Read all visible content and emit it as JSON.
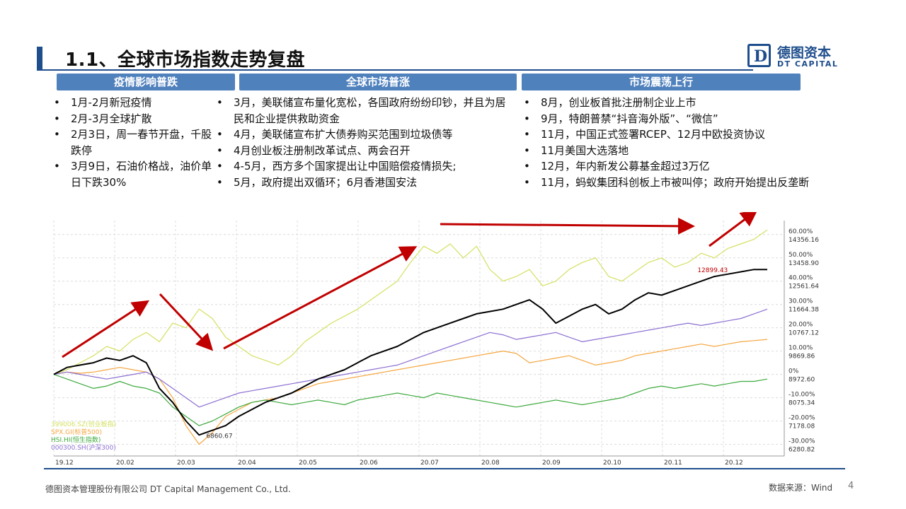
{
  "header": {
    "title": "1.1、全球市场指数走势复盘"
  },
  "logo": {
    "letter": "D",
    "cn": "德图资本",
    "en": "DT CAPITAL"
  },
  "phases": [
    {
      "label": "疫情影响普跌",
      "items": [
        "1月-2月新冠疫情",
        "2月-3月全球扩散",
        "2月3日，周一春节开盘，千股跌停",
        "3月9日，石油价格战，油价单日下跌30%"
      ]
    },
    {
      "label": "全球市场普涨",
      "items": [
        "3月，美联储宣布量化宽松，各国政府纷纷印钞，并且为居民和企业提供救助资金",
        "4月，美联储宣布扩大债券购买范围到垃圾债等",
        "4月创业板注册制改革试点、两会召开",
        "4-5月，西方多个国家提出让中国赔偿疫情损失;",
        "5月，政府提出双循环；6月香港国安法"
      ]
    },
    {
      "label": "市场震荡上行",
      "items": [
        "8月，创业板首批注册制企业上市",
        "9月，特朗普禁“抖音海外版”、“微信”",
        "11月，中国正式签署RCEP、12月中欧投资协议",
        "11月美国大选落地",
        "12月，年内新发公募基金超过3万亿",
        "11月，蚂蚁集团科创板上市被叫停；政府开始提出反垄断"
      ]
    }
  ],
  "chart_data": {
    "type": "line",
    "x_tick_labels": [
      "19.12",
      "20.02",
      "20.03",
      "20.04",
      "20.05",
      "20.06",
      "20.07",
      "20.08",
      "20.09",
      "20.10",
      "20.11",
      "20.12"
    ],
    "y_pct_ticks": [
      "60.00%",
      "50.00%",
      "40.00%",
      "30.00%",
      "20.00%",
      "10.00%",
      "0%",
      "-10.00%",
      "-20.00%",
      "-30.00%"
    ],
    "y_pct_values": [
      60,
      50,
      40,
      30,
      20,
      10,
      0,
      -10,
      -20,
      -30
    ],
    "y_level_ticks": [
      "14356.16",
      "13458.90",
      "12561.64",
      "11664.38",
      "10767.12",
      "9869.86",
      "8972.60",
      "8075.34",
      "7178.08",
      "6280.82"
    ],
    "y_level_values": [
      14356.16,
      13458.9,
      12561.64,
      11664.38,
      10767.12,
      9869.86,
      8972.6,
      8075.34,
      7178.08,
      6280.82
    ],
    "ylim_pct": [
      -35,
      66
    ],
    "annotations": {
      "low": "6860.67",
      "high": "12899.43"
    },
    "colors": {
      "gem": "#d4e060",
      "spx": "#f5a640",
      "hsi": "#3eaa3e",
      "csi": "#8c6fd1",
      "main": "#000000",
      "arrow": "#c00000"
    },
    "series": [
      {
        "name": "399006.SZ(创业板指)",
        "color": "#d4e060",
        "values": [
          0,
          2,
          5,
          8,
          12,
          10,
          15,
          18,
          14,
          22,
          20,
          28,
          24,
          16,
          12,
          8,
          6,
          4,
          8,
          14,
          18,
          22,
          25,
          28,
          32,
          36,
          40,
          48,
          55,
          52,
          56,
          50,
          55,
          45,
          40,
          42,
          45,
          38,
          40,
          45,
          48,
          50,
          42,
          40,
          44,
          48,
          50,
          46,
          48,
          52,
          50,
          54,
          56,
          58,
          62
        ]
      },
      {
        "name": "SPX.GI(标普500)",
        "color": "#f5a640",
        "values": [
          0,
          1,
          0.5,
          1,
          2,
          3,
          2,
          1,
          -2,
          -10,
          -22,
          -30,
          -25,
          -18,
          -15,
          -12,
          -11,
          -10,
          -8,
          -6,
          -4,
          -3,
          -2,
          -1,
          0,
          1,
          2,
          3,
          4,
          5,
          6,
          7,
          8,
          9,
          10,
          9,
          5,
          6,
          7,
          8,
          6,
          4,
          5,
          6,
          8,
          9,
          10,
          11,
          12,
          13,
          12,
          13,
          14,
          14.5,
          15
        ]
      },
      {
        "name": "HSI.HI(恒生指数)",
        "color": "#3eaa3e",
        "values": [
          0,
          -2,
          -4,
          -6,
          -5,
          -3,
          -5,
          -6,
          -8,
          -14,
          -18,
          -22,
          -20,
          -17,
          -14,
          -12,
          -11,
          -12,
          -13,
          -12,
          -11,
          -12,
          -13,
          -11,
          -10,
          -9,
          -8,
          -9,
          -10,
          -8,
          -9,
          -10,
          -11,
          -12,
          -13,
          -14,
          -13,
          -12,
          -11,
          -12,
          -13,
          -12,
          -11,
          -10,
          -8,
          -6,
          -5,
          -6,
          -5,
          -4,
          -5,
          -4,
          -3,
          -3,
          -2
        ]
      },
      {
        "name": "000300.SH(沪深300)",
        "color": "#8c6fd1",
        "values": [
          0,
          1,
          0,
          -1,
          -2,
          -1,
          0,
          1,
          -2,
          -6,
          -10,
          -14,
          -12,
          -10,
          -8,
          -7,
          -6,
          -5,
          -4,
          -3,
          -2,
          -1,
          0,
          1,
          2,
          3,
          4,
          6,
          8,
          10,
          12,
          14,
          16,
          18,
          17,
          15,
          16,
          17,
          18,
          16,
          14,
          15,
          16,
          17,
          18,
          19,
          20,
          21,
          22,
          21,
          22,
          23,
          24,
          26,
          28
        ]
      },
      {
        "name": "",
        "color": "#000000",
        "values": [
          0,
          3,
          4,
          5,
          7,
          6,
          8,
          5,
          -6,
          -12,
          -20,
          -26,
          -24,
          -22,
          -18,
          -15,
          -12,
          -10,
          -8,
          -5,
          -2,
          0,
          2,
          5,
          8,
          10,
          12,
          15,
          18,
          20,
          22,
          24,
          26,
          27,
          28,
          30,
          32,
          28,
          22,
          25,
          28,
          30,
          26,
          28,
          32,
          35,
          34,
          36,
          38,
          40,
          42,
          43,
          44,
          45,
          45
        ]
      }
    ]
  },
  "footer": {
    "company": "德图资本管理股份有限公司 DT Capital Management Co., Ltd.",
    "source": "数据来源：Wind",
    "page": "4"
  }
}
